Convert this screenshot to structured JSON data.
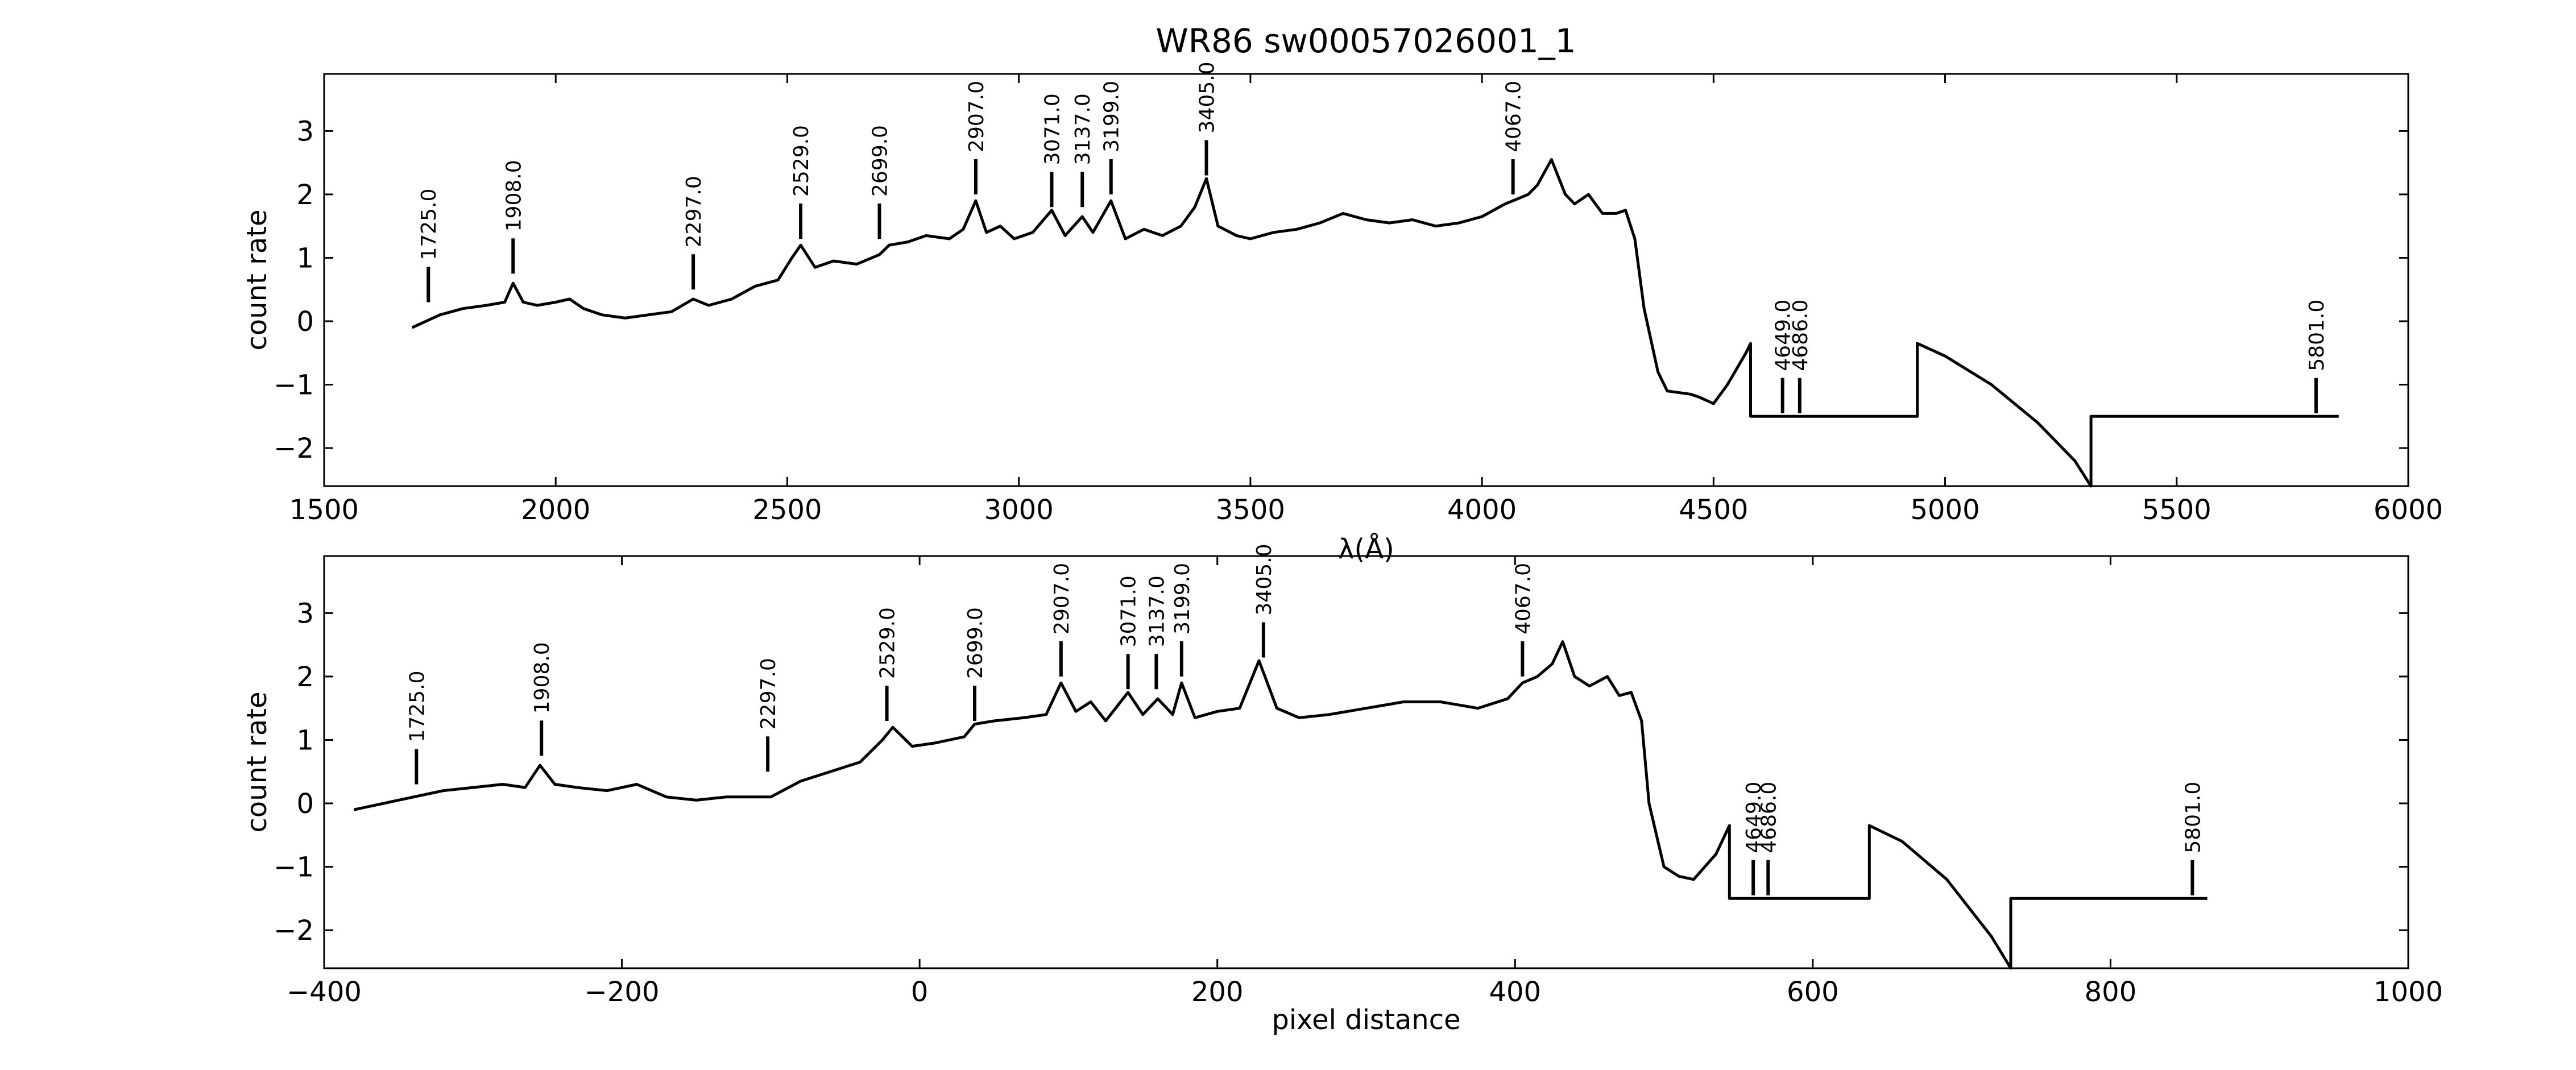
{
  "figure": {
    "title": "WR86  sw00057026001_1"
  },
  "chart_data": [
    {
      "type": "line",
      "panel": "top",
      "xlabel": "λ(Å)",
      "ylabel": "count rate",
      "xlim": [
        1500,
        6000
      ],
      "ylim": [
        -2.6,
        3.9
      ],
      "xticks": [
        1500,
        2000,
        2500,
        3000,
        3500,
        4000,
        4500,
        5000,
        5500,
        6000
      ],
      "yticks": [
        -2,
        -1,
        0,
        1,
        2,
        3
      ],
      "grid": false,
      "series": [
        {
          "x": [
            1690,
            1720,
            1750,
            1800,
            1850,
            1890,
            1908,
            1930,
            1960,
            2000,
            2030,
            2060,
            2100,
            2150,
            2200,
            2250,
            2297,
            2330,
            2380,
            2430,
            2480,
            2510,
            2529,
            2560,
            2600,
            2650,
            2699,
            2720,
            2760,
            2800,
            2850,
            2880,
            2907,
            2930,
            2960,
            2990,
            3030,
            3071,
            3100,
            3137,
            3160,
            3199,
            3230,
            3270,
            3310,
            3350,
            3380,
            3405,
            3430,
            3470,
            3500,
            3550,
            3600,
            3650,
            3700,
            3750,
            3800,
            3850,
            3900,
            3950,
            4000,
            4050,
            4067,
            4100,
            4120,
            4150,
            4180,
            4200,
            4230,
            4260,
            4290,
            4310,
            4330,
            4350,
            4380,
            4400,
            4450,
            4470,
            4500,
            4530,
            4570,
            4580,
            4580,
            4940,
            4940,
            5000,
            5100,
            5200,
            5280,
            5315,
            5315,
            5850
          ],
          "y": [
            -0.1,
            0.0,
            0.1,
            0.2,
            0.25,
            0.3,
            0.6,
            0.3,
            0.25,
            0.3,
            0.35,
            0.2,
            0.1,
            0.05,
            0.1,
            0.15,
            0.35,
            0.25,
            0.35,
            0.55,
            0.65,
            1.0,
            1.2,
            0.85,
            0.95,
            0.9,
            1.05,
            1.2,
            1.25,
            1.35,
            1.3,
            1.45,
            1.9,
            1.4,
            1.5,
            1.3,
            1.4,
            1.75,
            1.35,
            1.65,
            1.4,
            1.9,
            1.3,
            1.45,
            1.35,
            1.5,
            1.8,
            2.25,
            1.5,
            1.35,
            1.3,
            1.4,
            1.45,
            1.55,
            1.7,
            1.6,
            1.55,
            1.6,
            1.5,
            1.55,
            1.65,
            1.85,
            1.9,
            2.0,
            2.15,
            2.55,
            2.0,
            1.85,
            2.0,
            1.7,
            1.7,
            1.75,
            1.3,
            0.2,
            -0.8,
            -1.1,
            -1.15,
            -1.2,
            -1.3,
            -1.0,
            -0.5,
            -0.35,
            -1.5,
            -1.5,
            -0.35,
            -0.55,
            -1.0,
            -1.6,
            -2.2,
            -2.6,
            -1.5,
            -1.5
          ]
        }
      ],
      "lines": [
        {
          "label": "1725.0",
          "x": 1725,
          "y": 0.3
        },
        {
          "label": "1908.0",
          "x": 1908,
          "y": 0.75
        },
        {
          "label": "2297.0",
          "x": 2297,
          "y": 0.5
        },
        {
          "label": "2529.0",
          "x": 2529,
          "y": 1.3
        },
        {
          "label": "2699.0",
          "x": 2699,
          "y": 1.3
        },
        {
          "label": "2907.0",
          "x": 2907,
          "y": 2.0
        },
        {
          "label": "3071.0",
          "x": 3071,
          "y": 1.8
        },
        {
          "label": "3137.0",
          "x": 3137,
          "y": 1.8
        },
        {
          "label": "3199.0",
          "x": 3199,
          "y": 2.0
        },
        {
          "label": "3405.0",
          "x": 3405,
          "y": 2.3
        },
        {
          "label": "4067.0",
          "x": 4067,
          "y": 2.0
        },
        {
          "label": "4649.0",
          "x": 4649,
          "y": -1.45
        },
        {
          "label": "4686.0",
          "x": 4686,
          "y": -1.45
        },
        {
          "label": "5801.0",
          "x": 5801,
          "y": -1.45
        }
      ]
    },
    {
      "type": "line",
      "panel": "bottom",
      "xlabel": "pixel distance",
      "ylabel": "count rate",
      "xlim": [
        -400,
        1000
      ],
      "ylim": [
        -2.6,
        3.9
      ],
      "xticks": [
        -400,
        -200,
        0,
        200,
        400,
        600,
        800,
        1000
      ],
      "yticks": [
        -2,
        -1,
        0,
        1,
        2,
        3
      ],
      "grid": false,
      "series": [
        {
          "x": [
            -380,
            -360,
            -340,
            -320,
            -300,
            -280,
            -265,
            -255,
            -245,
            -230,
            -210,
            -190,
            -170,
            -150,
            -130,
            -100,
            -80,
            -60,
            -40,
            -25,
            -18,
            -5,
            10,
            30,
            37,
            50,
            70,
            85,
            95,
            105,
            115,
            125,
            140,
            150,
            160,
            170,
            176,
            185,
            200,
            215,
            228,
            240,
            255,
            275,
            300,
            325,
            350,
            375,
            395,
            405,
            415,
            425,
            432,
            440,
            450,
            462,
            470,
            478,
            485,
            490,
            500,
            510,
            520,
            535,
            544,
            544,
            638,
            638,
            660,
            690,
            720,
            733,
            733,
            865
          ],
          "y": [
            -0.1,
            0.0,
            0.1,
            0.2,
            0.25,
            0.3,
            0.25,
            0.6,
            0.3,
            0.25,
            0.2,
            0.3,
            0.1,
            0.05,
            0.1,
            0.1,
            0.35,
            0.5,
            0.65,
            1.0,
            1.2,
            0.9,
            0.95,
            1.05,
            1.25,
            1.3,
            1.35,
            1.4,
            1.9,
            1.45,
            1.6,
            1.3,
            1.75,
            1.4,
            1.65,
            1.4,
            1.9,
            1.35,
            1.45,
            1.5,
            2.25,
            1.5,
            1.35,
            1.4,
            1.5,
            1.6,
            1.6,
            1.5,
            1.65,
            1.9,
            2.0,
            2.2,
            2.55,
            2.0,
            1.85,
            2.0,
            1.7,
            1.75,
            1.3,
            0.0,
            -1.0,
            -1.15,
            -1.2,
            -0.8,
            -0.35,
            -1.5,
            -1.5,
            -0.35,
            -0.6,
            -1.2,
            -2.1,
            -2.6,
            -1.5,
            -1.5
          ]
        }
      ],
      "lines": [
        {
          "label": "1725.0",
          "x": -338,
          "y": 0.3
        },
        {
          "label": "1908.0",
          "x": -254,
          "y": 0.75
        },
        {
          "label": "2297.0",
          "x": -102,
          "y": 0.5
        },
        {
          "label": "2529.0",
          "x": -22,
          "y": 1.3
        },
        {
          "label": "2699.0",
          "x": 37,
          "y": 1.3
        },
        {
          "label": "2907.0",
          "x": 95,
          "y": 2.0
        },
        {
          "label": "3071.0",
          "x": 140,
          "y": 1.8
        },
        {
          "label": "3137.0",
          "x": 159,
          "y": 1.8
        },
        {
          "label": "3199.0",
          "x": 176,
          "y": 2.0
        },
        {
          "label": "3405.0",
          "x": 231,
          "y": 2.3
        },
        {
          "label": "4067.0",
          "x": 405,
          "y": 2.0
        },
        {
          "label": "4649.0",
          "x": 560,
          "y": -1.45
        },
        {
          "label": "4686.0",
          "x": 570,
          "y": -1.45
        },
        {
          "label": "5801.0",
          "x": 855,
          "y": -1.45
        }
      ]
    }
  ]
}
